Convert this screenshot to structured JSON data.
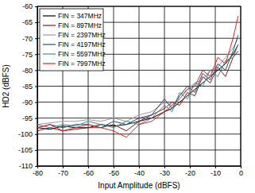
{
  "chart_data": {
    "type": "line",
    "x_label": "Input Amplitude (dBFS)",
    "y_label": "HD2 (dBFS)",
    "x": [
      -80,
      -75,
      -70,
      -65,
      -60,
      -55,
      -50,
      -45,
      -40,
      -35,
      -30,
      -27,
      -24,
      -21,
      -18,
      -15,
      -12,
      -9,
      -6,
      -3,
      -1
    ],
    "series": [
      {
        "name": "FIN = 347MHz",
        "color": "#000000",
        "values": [
          -98,
          -98.5,
          -97.5,
          -98,
          -98,
          -97,
          -97.5,
          -97,
          -96,
          -95,
          -93,
          -92,
          -90,
          -88,
          -86,
          -84,
          -82,
          -80,
          -78,
          -75,
          -72
        ]
      },
      {
        "name": "FIN = 897MHz",
        "color": "#8b1a1a",
        "values": [
          -99,
          -98,
          -99,
          -98.5,
          -98,
          -98,
          -97,
          -99,
          -96,
          -94,
          -92,
          -90,
          -91,
          -87,
          -88,
          -82,
          -84,
          -79,
          -82,
          -76,
          -74
        ]
      },
      {
        "name": "FIN = 2397MHz",
        "color": "#9a9a9a",
        "values": [
          -97,
          -96.5,
          -96,
          -96,
          -95.5,
          -96,
          -95,
          -96,
          -94,
          -93,
          -90,
          -91,
          -88,
          -86,
          -84,
          -83,
          -80,
          -79,
          -76,
          -73,
          -70
        ]
      },
      {
        "name": "FIN = 4197MHz",
        "color": "#2b4a8a",
        "values": [
          -98,
          -97,
          -98,
          -97,
          -97,
          -98,
          -96,
          -97,
          -95,
          -94,
          -89,
          -92,
          -88,
          -85,
          -87,
          -81,
          -83,
          -78,
          -80,
          -74,
          -69
        ]
      },
      {
        "name": "FIN = 5597MHz",
        "color": "#3f8f8f",
        "values": [
          -97,
          -98,
          -97,
          -97.5,
          -96,
          -97,
          -98,
          -96,
          -97,
          -95,
          -91,
          -93,
          -87,
          -89,
          -84,
          -85,
          -80,
          -82,
          -77,
          -76,
          -72
        ]
      },
      {
        "name": "FIN = 7997MHz",
        "color": "#e0261f",
        "values": [
          -98,
          -97,
          -99,
          -98,
          -97,
          -98,
          -99,
          -101,
          -97,
          -96,
          -93,
          -91,
          -89,
          -86,
          -85,
          -80,
          -82,
          -76,
          -78,
          -70,
          -63
        ]
      }
    ],
    "xlim": [
      -80,
      0
    ],
    "ylim": [
      -110,
      -60
    ],
    "xticks": [
      -80,
      -70,
      -60,
      -50,
      -40,
      -30,
      -20,
      -10,
      0
    ],
    "yticks": [
      -110,
      -105,
      -100,
      -95,
      -90,
      -85,
      -80,
      -75,
      -70,
      -65,
      -60
    ],
    "grid": true,
    "legend": "upper left"
  }
}
